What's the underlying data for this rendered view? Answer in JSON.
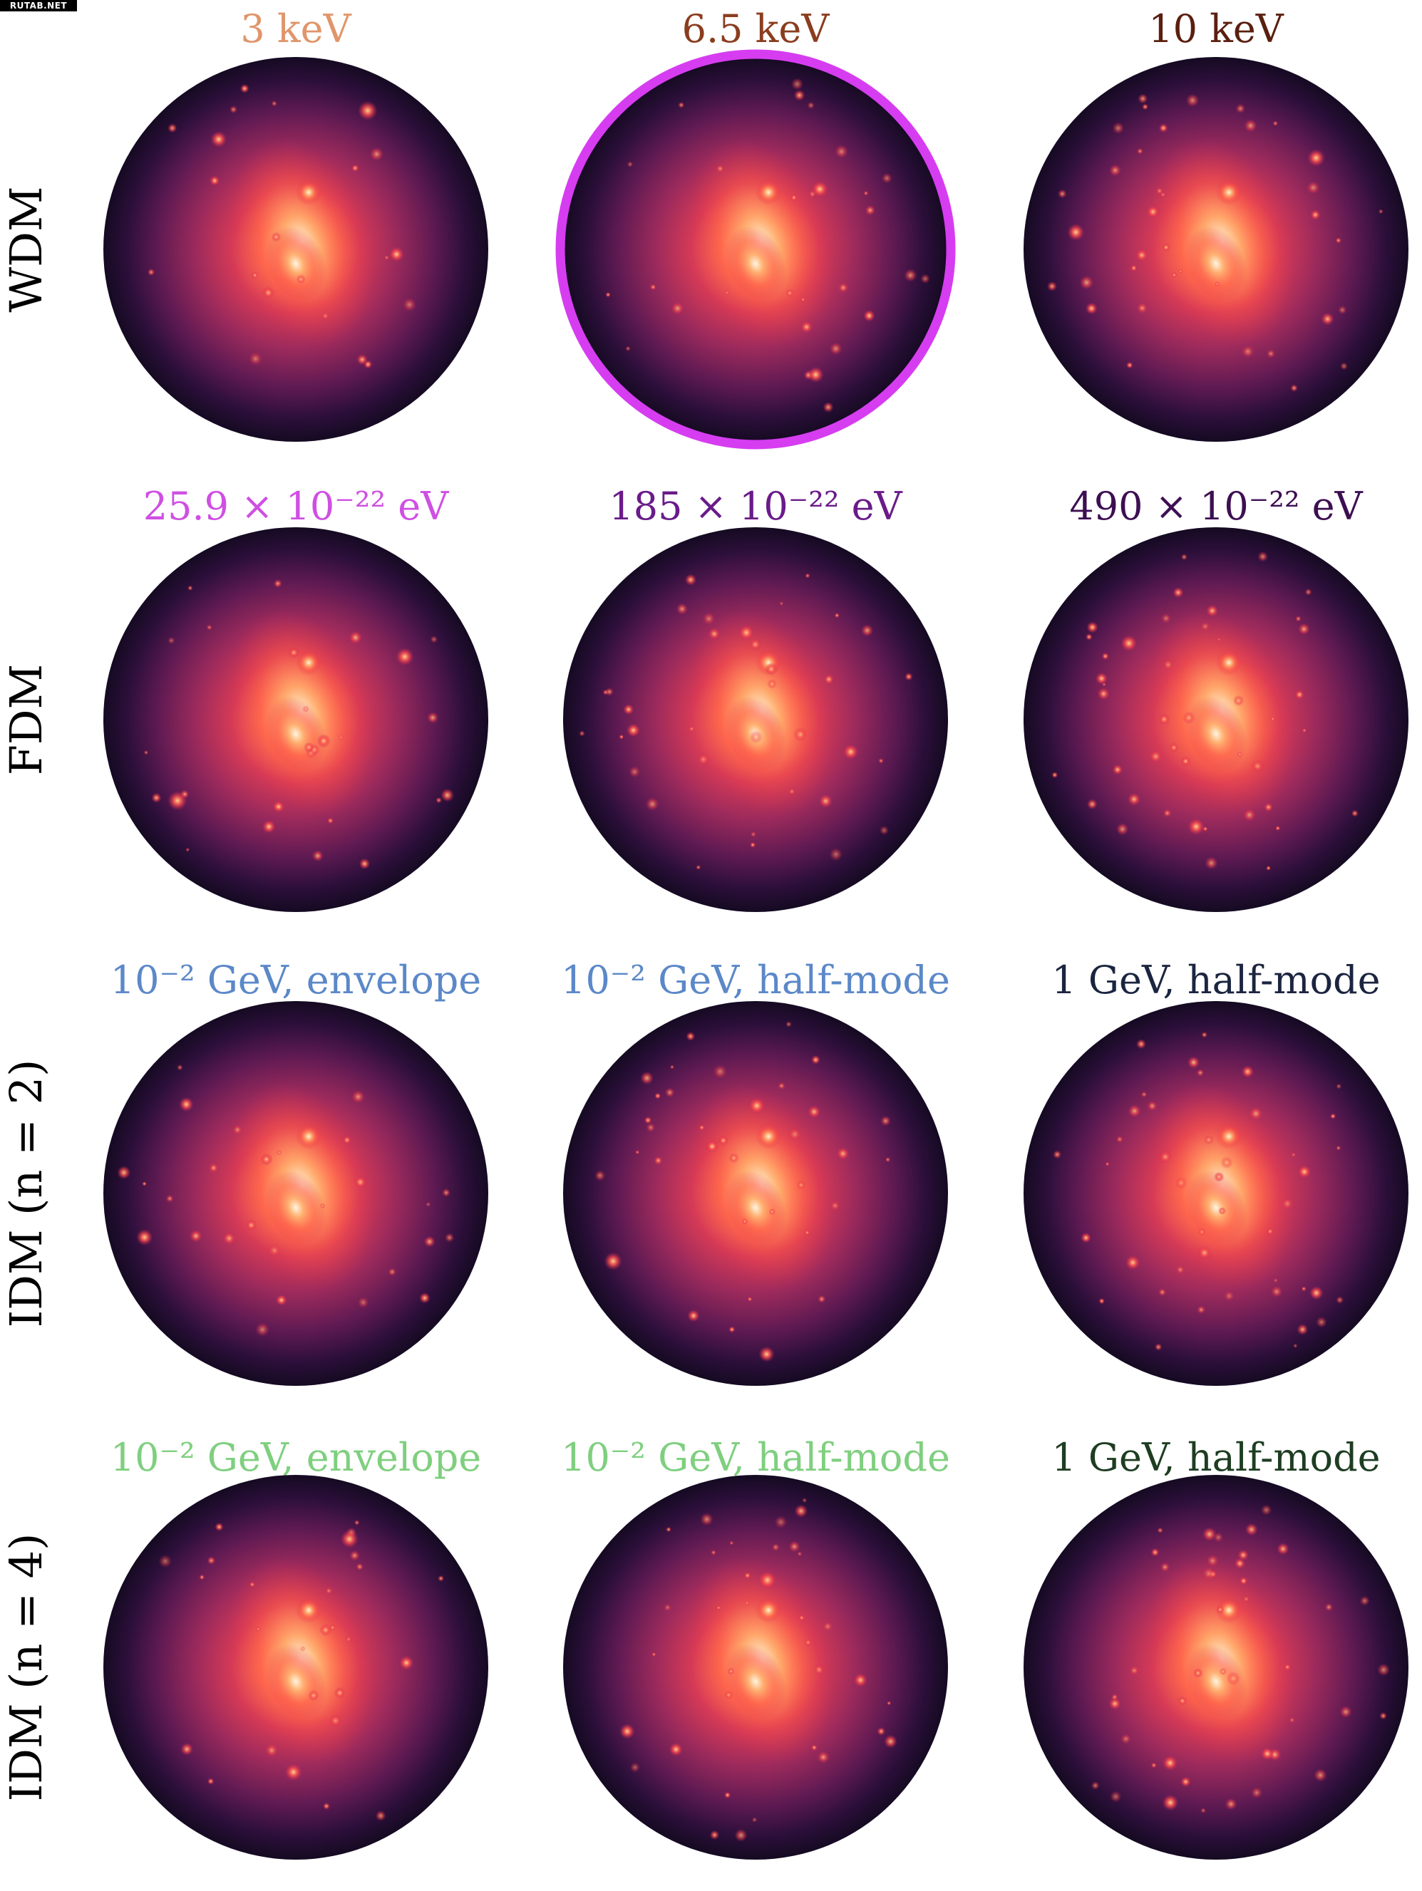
{
  "watermark": "RUTAB.NET",
  "highlight_color": "#d63df0",
  "rows": [
    {
      "label": "WDM",
      "cols": [
        {
          "text": "3 keV",
          "color": "#e0956a"
        },
        {
          "text": "6.5 keV",
          "color": "#8a3d1e",
          "highlighted": true
        },
        {
          "text": "10 keV",
          "color": "#5a1f0f"
        }
      ]
    },
    {
      "label": "FDM",
      "cols": [
        {
          "text": "25.9 × 10⁻²² eV",
          "color": "#cf4fe3"
        },
        {
          "text": "185 × 10⁻²² eV",
          "color": "#6a1b8a"
        },
        {
          "text": "490 × 10⁻²² eV",
          "color": "#3d0f52"
        }
      ]
    },
    {
      "label": "IDM (n = 2)",
      "cols": [
        {
          "text": "10⁻² GeV,  envelope",
          "color": "#5b88c8"
        },
        {
          "text": "10⁻² GeV,  half-mode",
          "color": "#5b88c8"
        },
        {
          "text": "1 GeV,  half-mode",
          "color": "#1b2540"
        }
      ]
    },
    {
      "label": "IDM (n = 4)",
      "cols": [
        {
          "text": "10⁻² GeV,  envelope",
          "color": "#7fcf7f"
        },
        {
          "text": "10⁻² GeV,  half-mode",
          "color": "#7fcf7f"
        },
        {
          "text": "1 GeV,  half-mode",
          "color": "#1e3d22"
        }
      ]
    }
  ]
}
